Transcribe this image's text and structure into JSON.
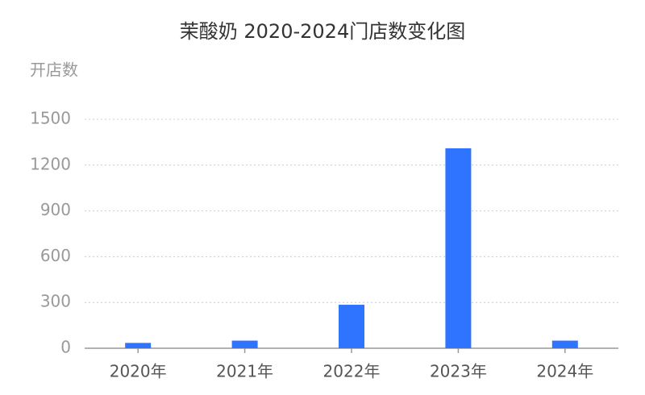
{
  "chart_data": {
    "type": "bar",
    "title": "茉酸奶 2020-2024门店数变化图",
    "y_label": "开店数",
    "categories": [
      "2020年",
      "2021年",
      "2022年",
      "2023年",
      "2024年"
    ],
    "values": [
      35,
      50,
      285,
      1310,
      50
    ],
    "color": "#2f74ff",
    "ylim": [
      0,
      1500
    ],
    "yticks": [
      0,
      300,
      600,
      900,
      1200,
      1500
    ],
    "grid": true
  }
}
